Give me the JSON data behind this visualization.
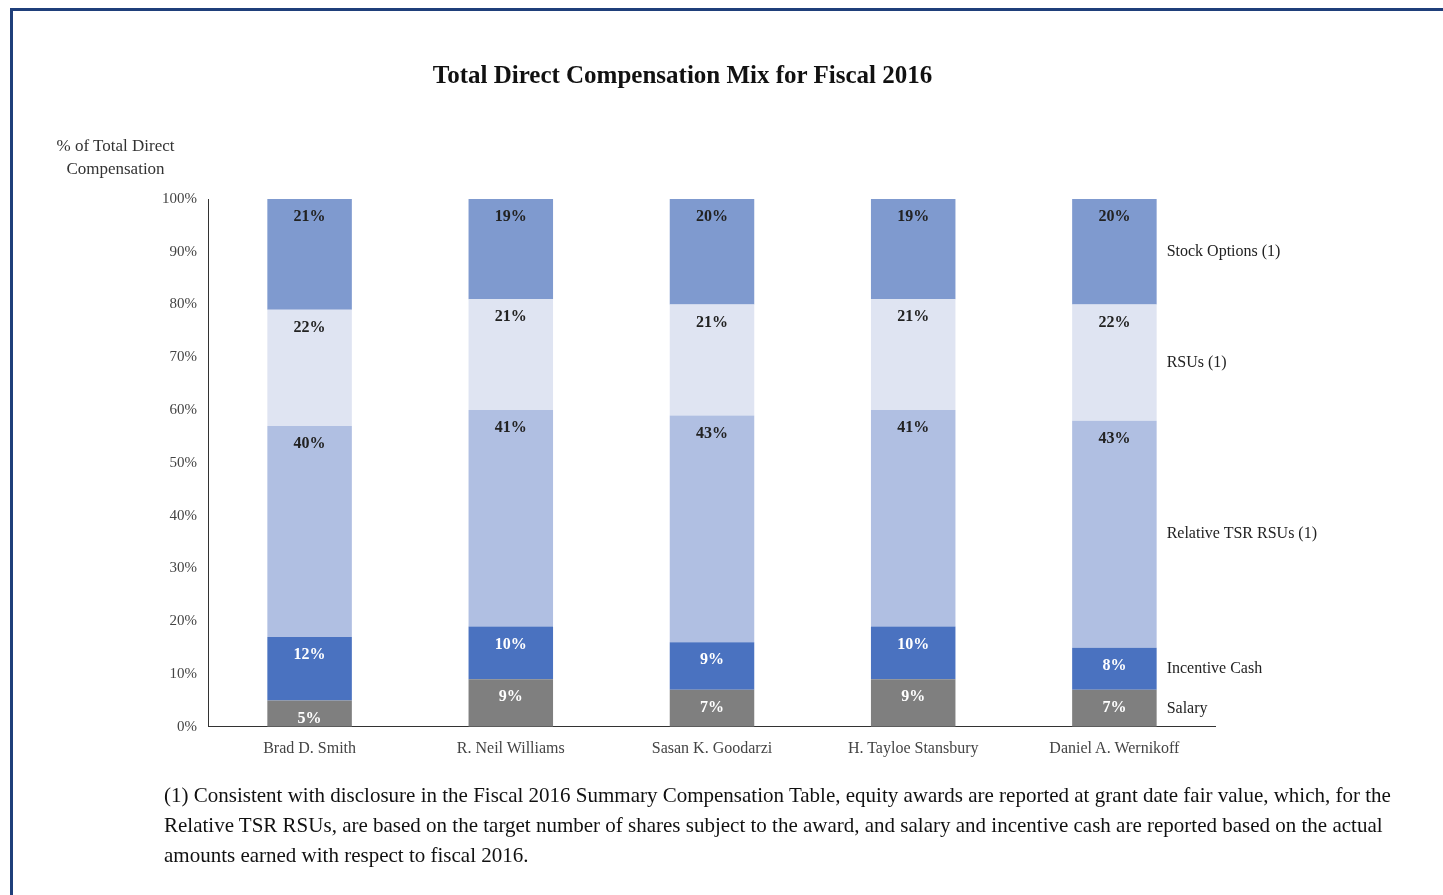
{
  "chart_data": {
    "type": "bar",
    "title": "Total Direct Compensation Mix for Fiscal 2016",
    "ylabel": "% of Total Direct Compensation",
    "categories": [
      "Brad D. Smith",
      "R. Neil Williams",
      "Sasan K. Goodarzi",
      "H. Tayloe Stansbury",
      "Daniel A. Wernikoff"
    ],
    "series": [
      {
        "name": "Salary",
        "color": "#7f7f7f",
        "values": [
          5,
          9,
          7,
          9,
          7
        ]
      },
      {
        "name": "Incentive Cash",
        "color": "#4a72c0",
        "values": [
          12,
          10,
          9,
          10,
          8
        ]
      },
      {
        "name": "Relative TSR RSUs (1)",
        "color": "#b0bfe2",
        "values": [
          40,
          41,
          43,
          41,
          43
        ]
      },
      {
        "name": "RSUs (1)",
        "color": "#dfe4f2",
        "values": [
          22,
          21,
          21,
          21,
          22
        ]
      },
      {
        "name": "Stock Options (1)",
        "color": "#7f9acf",
        "values": [
          21,
          19,
          20,
          19,
          20
        ]
      }
    ],
    "stacked": true,
    "ylim": [
      0,
      100
    ],
    "yticks": [
      {
        "value": 0,
        "label": "0%"
      },
      {
        "value": 10,
        "label": "10%"
      },
      {
        "value": 20,
        "label": "20%"
      },
      {
        "value": 30,
        "label": "30%"
      },
      {
        "value": 40,
        "label": "40%"
      },
      {
        "value": 50,
        "label": "50%"
      },
      {
        "value": 60,
        "label": "60%"
      },
      {
        "value": 70,
        "label": "70%"
      },
      {
        "value": 80,
        "label": "80%"
      },
      {
        "value": 90,
        "label": "90%"
      },
      {
        "value": 100,
        "label": "100%"
      }
    ],
    "value_labels": [
      [
        "5%",
        "9%",
        "7%",
        "9%",
        "7%"
      ],
      [
        "12%",
        "10%",
        "9%",
        "10%",
        "8%"
      ],
      [
        "40%",
        "41%",
        "43%",
        "41%",
        "43%"
      ],
      [
        "22%",
        "21%",
        "21%",
        "21%",
        "22%"
      ],
      [
        "21%",
        "19%",
        "20%",
        "19%",
        "20%"
      ]
    ],
    "grid": false,
    "legend": "right",
    "annotations": [
      "(1) Consistent with disclosure in the Fiscal 2016 Summary Compensation Table, equity awards are reported at grant date fair value, which, for the Relative TSR RSUs, are based on the target number of shares subject to the award, and salary and incentive cash are reported based on the actual amounts earned with respect to fiscal 2016."
    ]
  }
}
